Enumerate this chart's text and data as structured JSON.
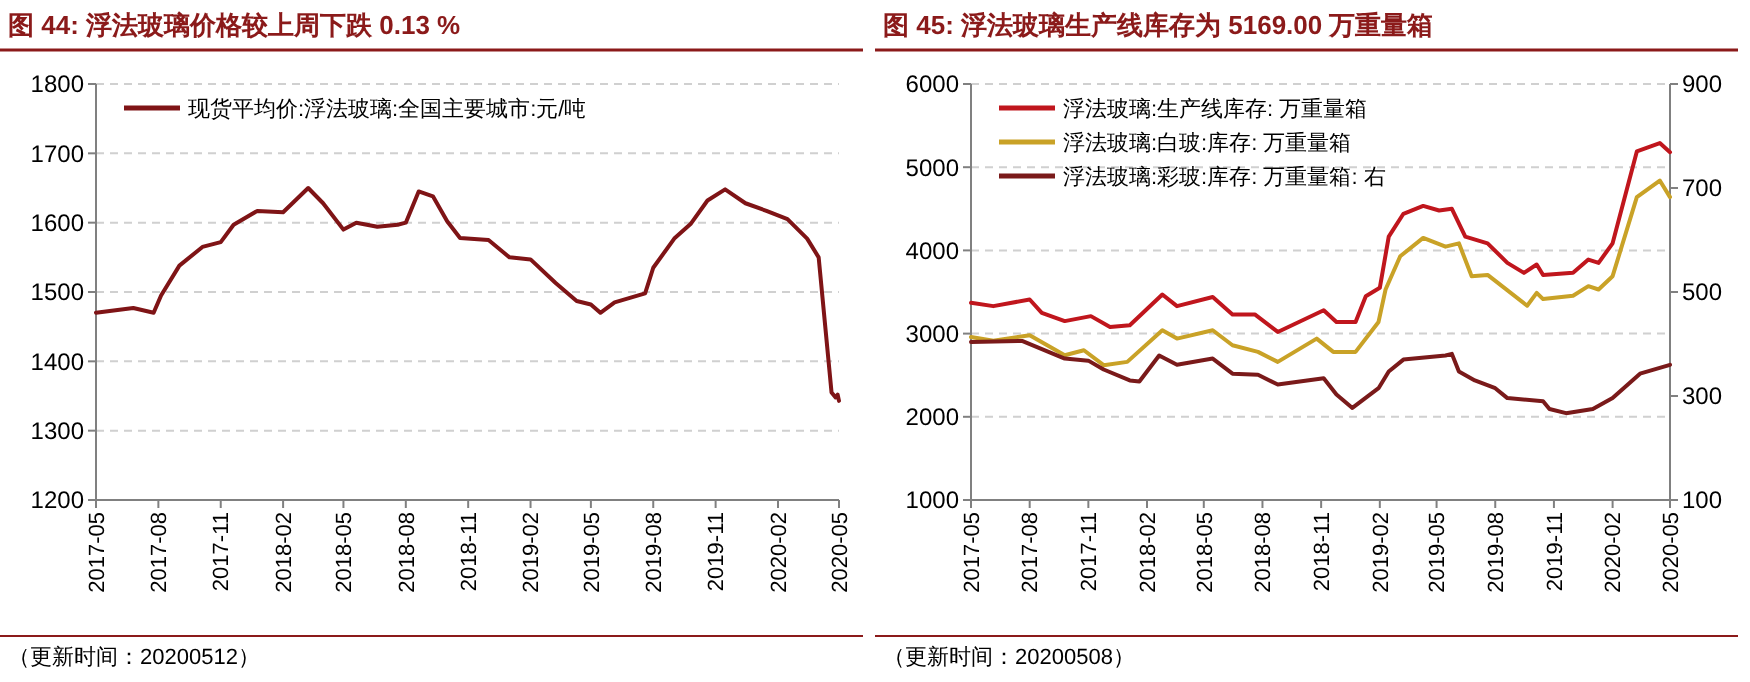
{
  "chart_data": [
    {
      "type": "line",
      "title": "图 44: 浮法玻璃价格较上周下跌 0.13 %",
      "annotations": [
        "（更新时间：20200512）"
      ],
      "grid": "y",
      "legend": "top left",
      "xlim": [
        "2017-05-01",
        "2020-05-01"
      ],
      "xticks": [
        "2017-05",
        "2017-08",
        "2017-11",
        "2018-02",
        "2018-05",
        "2018-08",
        "2018-11",
        "2019-02",
        "2019-05",
        "2019-08",
        "2019-11",
        "2020-02",
        "2020-05"
      ],
      "ylim": [
        1200,
        1800
      ],
      "yticks": [
        1200,
        1300,
        1400,
        1500,
        1600,
        1700,
        1800
      ],
      "series": [
        {
          "name": "现货平均价:浮法玻璃:全国主要城市:元/吨",
          "color": "#7f1416",
          "x": [
            "2017-05-01",
            "2017-06-25",
            "2017-07-25",
            "2017-08-05",
            "2017-09-01",
            "2017-10-05",
            "2017-11-01",
            "2017-11-20",
            "2017-12-25",
            "2018-02-01",
            "2018-03-10",
            "2018-04-01",
            "2018-05-01",
            "2018-05-20",
            "2018-06-20",
            "2018-07-20",
            "2018-08-01",
            "2018-08-20",
            "2018-09-10",
            "2018-10-01",
            "2018-10-20",
            "2018-12-01",
            "2019-01-01",
            "2019-02-01",
            "2019-03-10",
            "2019-04-10",
            "2019-05-01",
            "2019-05-15",
            "2019-06-05",
            "2019-07-20",
            "2019-08-01",
            "2019-09-01",
            "2019-09-25",
            "2019-10-20",
            "2019-11-15",
            "2019-12-15",
            "2020-01-15",
            "2020-02-15",
            "2020-03-15",
            "2020-04-01",
            "2020-04-20",
            "2020-04-26",
            "2020-04-29",
            "2020-05-01"
          ],
          "values": [
            1470,
            1477,
            1470,
            1495,
            1538,
            1565,
            1572,
            1597,
            1617,
            1615,
            1650,
            1628,
            1590,
            1600,
            1594,
            1597,
            1600,
            1645,
            1638,
            1602,
            1578,
            1575,
            1550,
            1547,
            1513,
            1487,
            1482,
            1470,
            1485,
            1498,
            1535,
            1577,
            1598,
            1632,
            1648,
            1628,
            1617,
            1605,
            1577,
            1550,
            1355,
            1348,
            1352,
            1343
          ]
        }
      ]
    },
    {
      "type": "line",
      "title": "图 45: 浮法玻璃生产线库存为 5169.00 万重量箱",
      "annotations": [
        "（更新时间：20200508）"
      ],
      "grid": "y",
      "legend": "top left",
      "xlim": [
        "2017-05-01",
        "2020-05-01"
      ],
      "xticks": [
        "2017-05",
        "2017-08",
        "2017-11",
        "2018-02",
        "2018-05",
        "2018-08",
        "2018-11",
        "2019-02",
        "2019-05",
        "2019-08",
        "2019-11",
        "2020-02",
        "2020-05"
      ],
      "ylim": [
        1000,
        6000
      ],
      "yticks": [
        1000,
        2000,
        3000,
        4000,
        5000,
        6000
      ],
      "y2lim": [
        100,
        900
      ],
      "y2ticks": [
        100,
        300,
        500,
        700,
        900
      ],
      "series": [
        {
          "name": "浮法玻璃:生产线库存: 万重量箱",
          "color": "#c0161d",
          "x": [
            "2017-05-01",
            "2017-06-05",
            "2017-08-01",
            "2017-08-20",
            "2017-09-25",
            "2017-11-05",
            "2017-12-05",
            "2018-01-05",
            "2018-02-25",
            "2018-03-20",
            "2018-05-15",
            "2018-06-15",
            "2018-07-20",
            "2018-08-25",
            "2018-11-05",
            "2018-11-25",
            "2018-12-25",
            "2019-01-10",
            "2019-02-01",
            "2019-02-15",
            "2019-03-10",
            "2019-04-10",
            "2019-05-05",
            "2019-05-25",
            "2019-06-15",
            "2019-07-20",
            "2019-08-20",
            "2019-09-15",
            "2019-10-05",
            "2019-10-15",
            "2019-12-01",
            "2019-12-25",
            "2020-01-10",
            "2020-02-01",
            "2020-03-10",
            "2020-04-15",
            "2020-05-01"
          ],
          "values": [
            3370,
            3330,
            3410,
            3250,
            3150,
            3210,
            3080,
            3100,
            3470,
            3330,
            3440,
            3230,
            3230,
            3020,
            3280,
            3140,
            3140,
            3450,
            3550,
            4165,
            4440,
            4535,
            4480,
            4500,
            4165,
            4085,
            3850,
            3730,
            3830,
            3705,
            3730,
            3890,
            3850,
            4085,
            5190,
            5290,
            5180
          ]
        },
        {
          "name": "浮法玻璃:白玻:库存: 万重量箱",
          "color": "#c9a227",
          "x": [
            "2017-05-01",
            "2017-06-05",
            "2017-08-01",
            "2017-09-25",
            "2017-10-25",
            "2017-11-25",
            "2018-01-01",
            "2018-02-25",
            "2018-03-20",
            "2018-05-15",
            "2018-06-15",
            "2018-07-25",
            "2018-08-25",
            "2018-10-25",
            "2018-11-20",
            "2018-12-25",
            "2019-01-30",
            "2019-02-10",
            "2019-03-05",
            "2019-04-10",
            "2019-05-15",
            "2019-06-05",
            "2019-06-25",
            "2019-07-20",
            "2019-09-20",
            "2019-10-05",
            "2019-10-15",
            "2019-12-01",
            "2019-12-25",
            "2020-01-10",
            "2020-02-01",
            "2020-03-10",
            "2020-04-15",
            "2020-05-01"
          ],
          "values": [
            2960,
            2915,
            2980,
            2740,
            2800,
            2620,
            2660,
            3040,
            2940,
            3040,
            2860,
            2780,
            2660,
            2940,
            2780,
            2780,
            3140,
            3530,
            3930,
            4150,
            4045,
            4085,
            3690,
            3705,
            3335,
            3490,
            3415,
            3455,
            3570,
            3530,
            3690,
            4640,
            4840,
            4640
          ]
        },
        {
          "name": "浮法玻璃:彩玻:库存: 万重量箱: 右",
          "color": "#7a1a1a",
          "axis": "y2",
          "x": [
            "2017-05-01",
            "2017-07-20",
            "2017-09-25",
            "2017-11-01",
            "2017-11-25",
            "2018-01-05",
            "2018-01-20",
            "2018-02-20",
            "2018-03-20",
            "2018-05-15",
            "2018-06-15",
            "2018-07-25",
            "2018-08-25",
            "2018-11-05",
            "2018-11-25",
            "2018-12-20",
            "2019-01-30",
            "2019-02-15",
            "2019-03-10",
            "2019-05-15",
            "2019-05-25",
            "2019-06-05",
            "2019-06-30",
            "2019-08-01",
            "2019-08-20",
            "2019-10-15",
            "2019-10-25",
            "2019-11-20",
            "2020-01-01",
            "2020-02-01",
            "2020-03-15",
            "2020-05-01"
          ],
          "values": [
            404,
            406,
            372,
            368,
            351,
            330,
            328,
            378,
            360,
            372,
            343,
            341,
            322,
            334,
            303,
            277,
            315,
            347,
            370,
            378,
            381,
            347,
            330,
            315,
            296,
            290,
            275,
            267,
            275,
            296,
            343,
            360
          ]
        }
      ]
    }
  ]
}
